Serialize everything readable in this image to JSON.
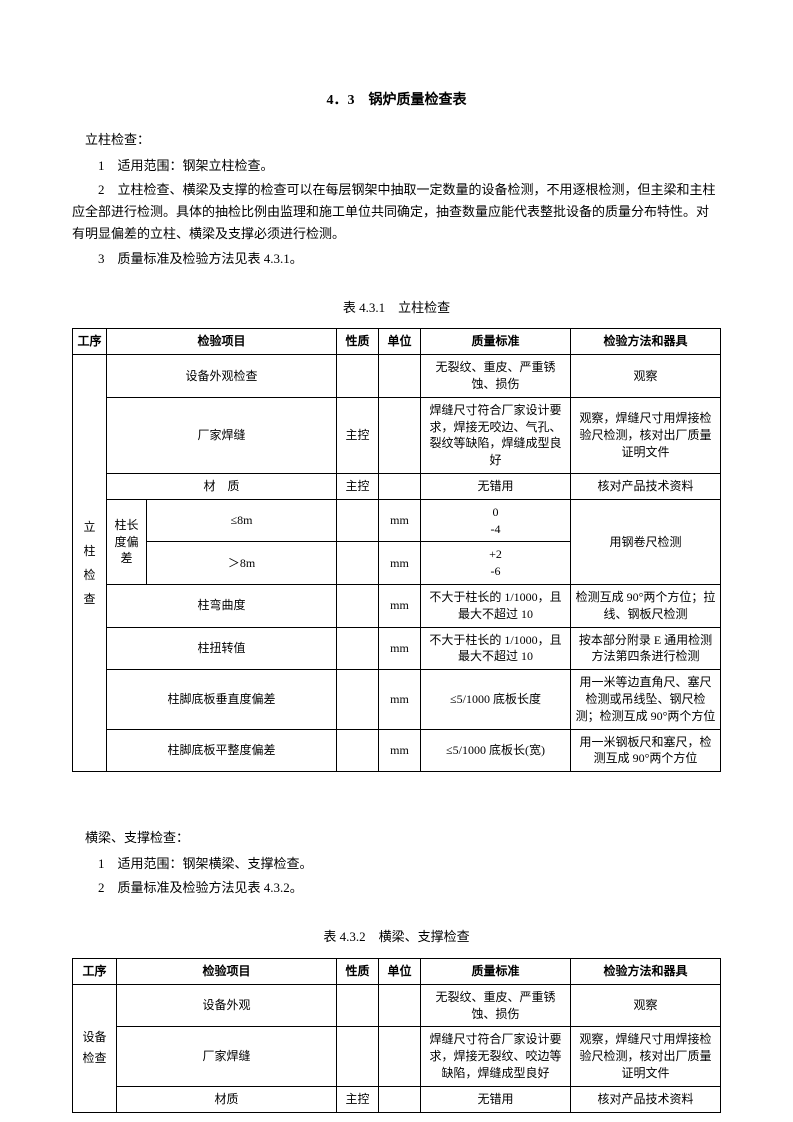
{
  "title": "4．3　锅炉质量检查表",
  "section1": {
    "heading": "立柱检查：",
    "p1": "1　适用范围：钢架立柱检查。",
    "p2": "2　立柱检查、横梁及支撑的检查可以在每层钢架中抽取一定数量的设备检测，不用逐根检测，但主梁和主柱应全部进行检测。具体的抽检比例由监理和施工单位共同确定，抽查数量应能代表整批设备的质量分布特性。对有明显偏差的立柱、横梁及支撑必须进行检测。",
    "p3": "3　质量标准及检验方法见表 4.3.1。"
  },
  "table1": {
    "caption": "表 4.3.1　立柱检查",
    "headers": {
      "proc": "工序",
      "item": "检验项目",
      "nature": "性质",
      "unit": "单位",
      "std": "质量标准",
      "method": "检验方法和器具"
    },
    "proc_label": "立\n柱\n检\n查",
    "rows": {
      "r1": {
        "item": "设备外观检查",
        "nature": "",
        "unit": "",
        "std": "无裂纹、重皮、严重锈蚀、损伤",
        "method": "观察"
      },
      "r2": {
        "item": "厂家焊缝",
        "nature": "主控",
        "unit": "",
        "std": "焊缝尺寸符合厂家设计要求，焊接无咬边、气孔、裂纹等缺陷，焊缝成型良好",
        "method": "观察，焊缝尺寸用焊接检验尺检测，核对出厂质量证明文件"
      },
      "r3": {
        "item": "材　质",
        "nature": "主控",
        "unit": "",
        "std": "无错用",
        "method": "核对产品技术资料"
      },
      "r4": {
        "group": "柱长度偏差",
        "sub": "≤8m",
        "nature": "",
        "unit": "mm",
        "std1": "0",
        "std2": "-4",
        "method": "用钢卷尺检测"
      },
      "r5": {
        "sub": "＞8m",
        "nature": "",
        "unit": "mm",
        "std1": "+2",
        "std2": "-6"
      },
      "r6": {
        "item": "柱弯曲度",
        "nature": "",
        "unit": "mm",
        "std": "不大于柱长的 1/1000，且最大不超过 10",
        "method": "检测互成 90°两个方位；拉线、钢板尺检测"
      },
      "r7": {
        "item": "柱扭转值",
        "nature": "",
        "unit": "mm",
        "std": "不大于柱长的 1/1000，且最大不超过 10",
        "method": "按本部分附录 E 通用检测方法第四条进行检测"
      },
      "r8": {
        "item": "柱脚底板垂直度偏差",
        "nature": "",
        "unit": "mm",
        "std": "≤5/1000 底板长度",
        "method": "用一米等边直角尺、塞尺检测或吊线坠、钢尺检测；检测互成 90°两个方位"
      },
      "r9": {
        "item": "柱脚底板平整度偏差",
        "nature": "",
        "unit": "mm",
        "std": "≤5/1000 底板长(宽)",
        "method": "用一米钢板尺和塞尺，检测互成 90°两个方位"
      }
    }
  },
  "section2": {
    "heading": "横梁、支撑检查：",
    "p1": "1　适用范围：钢架横梁、支撑检查。",
    "p2": "2　质量标准及检验方法见表 4.3.2。"
  },
  "table2": {
    "caption": "表 4.3.2　横梁、支撑检查",
    "headers": {
      "proc": "工序",
      "item": "检验项目",
      "nature": "性质",
      "unit": "单位",
      "std": "质量标准",
      "method": "检验方法和器具"
    },
    "proc_label": "设备\n检查",
    "rows": {
      "r1": {
        "item": "设备外观",
        "nature": "",
        "unit": "",
        "std": "无裂纹、重皮、严重锈蚀、损伤",
        "method": "观察"
      },
      "r2": {
        "item": "厂家焊缝",
        "nature": "",
        "unit": "",
        "std": "焊缝尺寸符合厂家设计要求，焊接无裂纹、咬边等缺陷，焊缝成型良好",
        "method": "观察，焊缝尺寸用焊接检验尺检测，核对出厂质量证明文件"
      },
      "r3": {
        "item": "材质",
        "nature": "主控",
        "unit": "",
        "std": "无错用",
        "method": "核对产品技术资料"
      }
    }
  }
}
